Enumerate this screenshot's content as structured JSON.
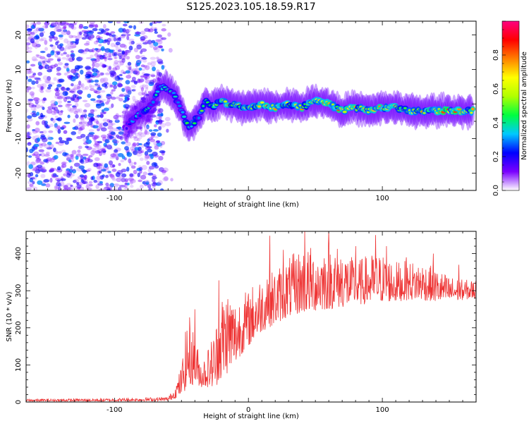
{
  "title": "S125.2023.105.18.59.R17",
  "chart_data": [
    {
      "type": "heatmap",
      "xlabel": "Height of straight line (km)",
      "ylabel": "Frequency (Hz)",
      "xlim": [
        -166,
        170
      ],
      "ylim": [
        -25,
        24
      ],
      "x_ticks": [
        -100,
        0,
        100
      ],
      "x_tick_labels": [
        "-100",
        "0",
        "100"
      ],
      "y_ticks": [
        -20,
        -10,
        0,
        10,
        20
      ],
      "y_tick_labels": [
        "-20",
        "-10",
        "0",
        "10",
        "20"
      ],
      "grid": false,
      "colorbar": {
        "label": "Normalized spectral amplitude",
        "range": [
          0,
          1
        ],
        "ticks": [
          0.0,
          0.2,
          0.4,
          0.6,
          0.8
        ],
        "tick_labels": [
          "0.0",
          "0.2",
          "0.4",
          "0.6",
          "0.8"
        ],
        "colormap": [
          "#ffffff",
          "#7a00ff",
          "#0000ff",
          "#00c8ff",
          "#00ff40",
          "#b0ff00",
          "#ffff00",
          "#ff8000",
          "#ff0000",
          "#ff0080"
        ]
      },
      "noise_region": {
        "x": [
          -166,
          -65
        ],
        "y": [
          -25,
          24
        ],
        "amplitude": [
          0.05,
          0.3
        ]
      },
      "ridge": {
        "x": [
          -92,
          -85,
          -78,
          -72,
          -68,
          -64,
          -60,
          -56,
          -52,
          -48,
          -44,
          -40,
          -36,
          -32,
          -28,
          -24,
          -20,
          -15,
          -10,
          -5,
          0,
          10,
          20,
          30,
          40,
          50,
          60,
          70,
          80,
          90,
          100,
          110,
          120,
          130,
          140,
          150,
          160,
          168
        ],
        "y": [
          -7,
          -4,
          -2,
          0,
          4,
          5,
          4,
          3,
          0,
          -4,
          -7,
          -5,
          -3,
          1,
          -1,
          0,
          1,
          0,
          0,
          -1,
          -1,
          0,
          -1,
          0,
          -1,
          1,
          0,
          -2,
          -1,
          -2,
          -1,
          -1,
          -2,
          -2,
          -2,
          -2,
          -2,
          -2
        ],
        "amplitude": [
          0.3,
          0.35,
          0.4,
          0.45,
          0.5,
          0.45,
          0.4,
          0.4,
          0.45,
          0.5,
          0.55,
          0.55,
          0.5,
          0.6,
          0.6,
          0.7,
          0.75,
          0.8,
          0.8,
          0.75,
          0.75,
          0.8,
          0.8,
          0.75,
          0.8,
          0.8,
          0.8,
          0.85,
          0.75,
          0.8,
          0.8,
          0.75,
          0.8,
          0.8,
          0.85,
          0.85,
          0.85,
          0.8
        ]
      }
    },
    {
      "type": "line",
      "xlabel": "Height of straight line (km)",
      "ylabel": "SNR (10 * v/v)",
      "xlim": [
        -166,
        170
      ],
      "ylim": [
        0,
        460
      ],
      "x_ticks": [
        -100,
        0,
        100
      ],
      "x_tick_labels": [
        "-100",
        "0",
        "100"
      ],
      "y_ticks": [
        0,
        100,
        200,
        300,
        400
      ],
      "y_tick_labels": [
        "0",
        "100",
        "200",
        "300",
        "400"
      ],
      "grid": false,
      "color": "#ee3333",
      "envelope": {
        "x": [
          -166,
          -100,
          -60,
          -55,
          -50,
          -45,
          -40,
          -35,
          -30,
          -25,
          -20,
          -15,
          -10,
          -5,
          0,
          5,
          10,
          20,
          30,
          40,
          50,
          60,
          70,
          80,
          90,
          100,
          110,
          120,
          130,
          140,
          150,
          160,
          170
        ],
        "low": [
          2,
          2,
          3,
          10,
          20,
          40,
          50,
          40,
          40,
          40,
          60,
          80,
          100,
          130,
          150,
          170,
          190,
          210,
          230,
          240,
          245,
          250,
          255,
          260,
          265,
          270,
          270,
          275,
          275,
          270,
          270,
          275,
          280
        ],
        "high": [
          8,
          10,
          14,
          40,
          100,
          250,
          180,
          110,
          150,
          200,
          300,
          320,
          280,
          300,
          300,
          330,
          340,
          360,
          390,
          420,
          420,
          430,
          420,
          380,
          400,
          400,
          380,
          380,
          380,
          360,
          340,
          330,
          330
        ],
        "peaks": [
          [
            -40,
            250
          ],
          [
            -22,
            328
          ],
          [
            14,
            330
          ],
          [
            16,
            448
          ],
          [
            26,
            410
          ],
          [
            42,
            460
          ],
          [
            60,
            460
          ],
          [
            80,
            420
          ],
          [
            95,
            450
          ],
          [
            103,
            420
          ],
          [
            118,
            390
          ],
          [
            138,
            400
          ],
          [
            157,
            370
          ]
        ]
      }
    }
  ]
}
